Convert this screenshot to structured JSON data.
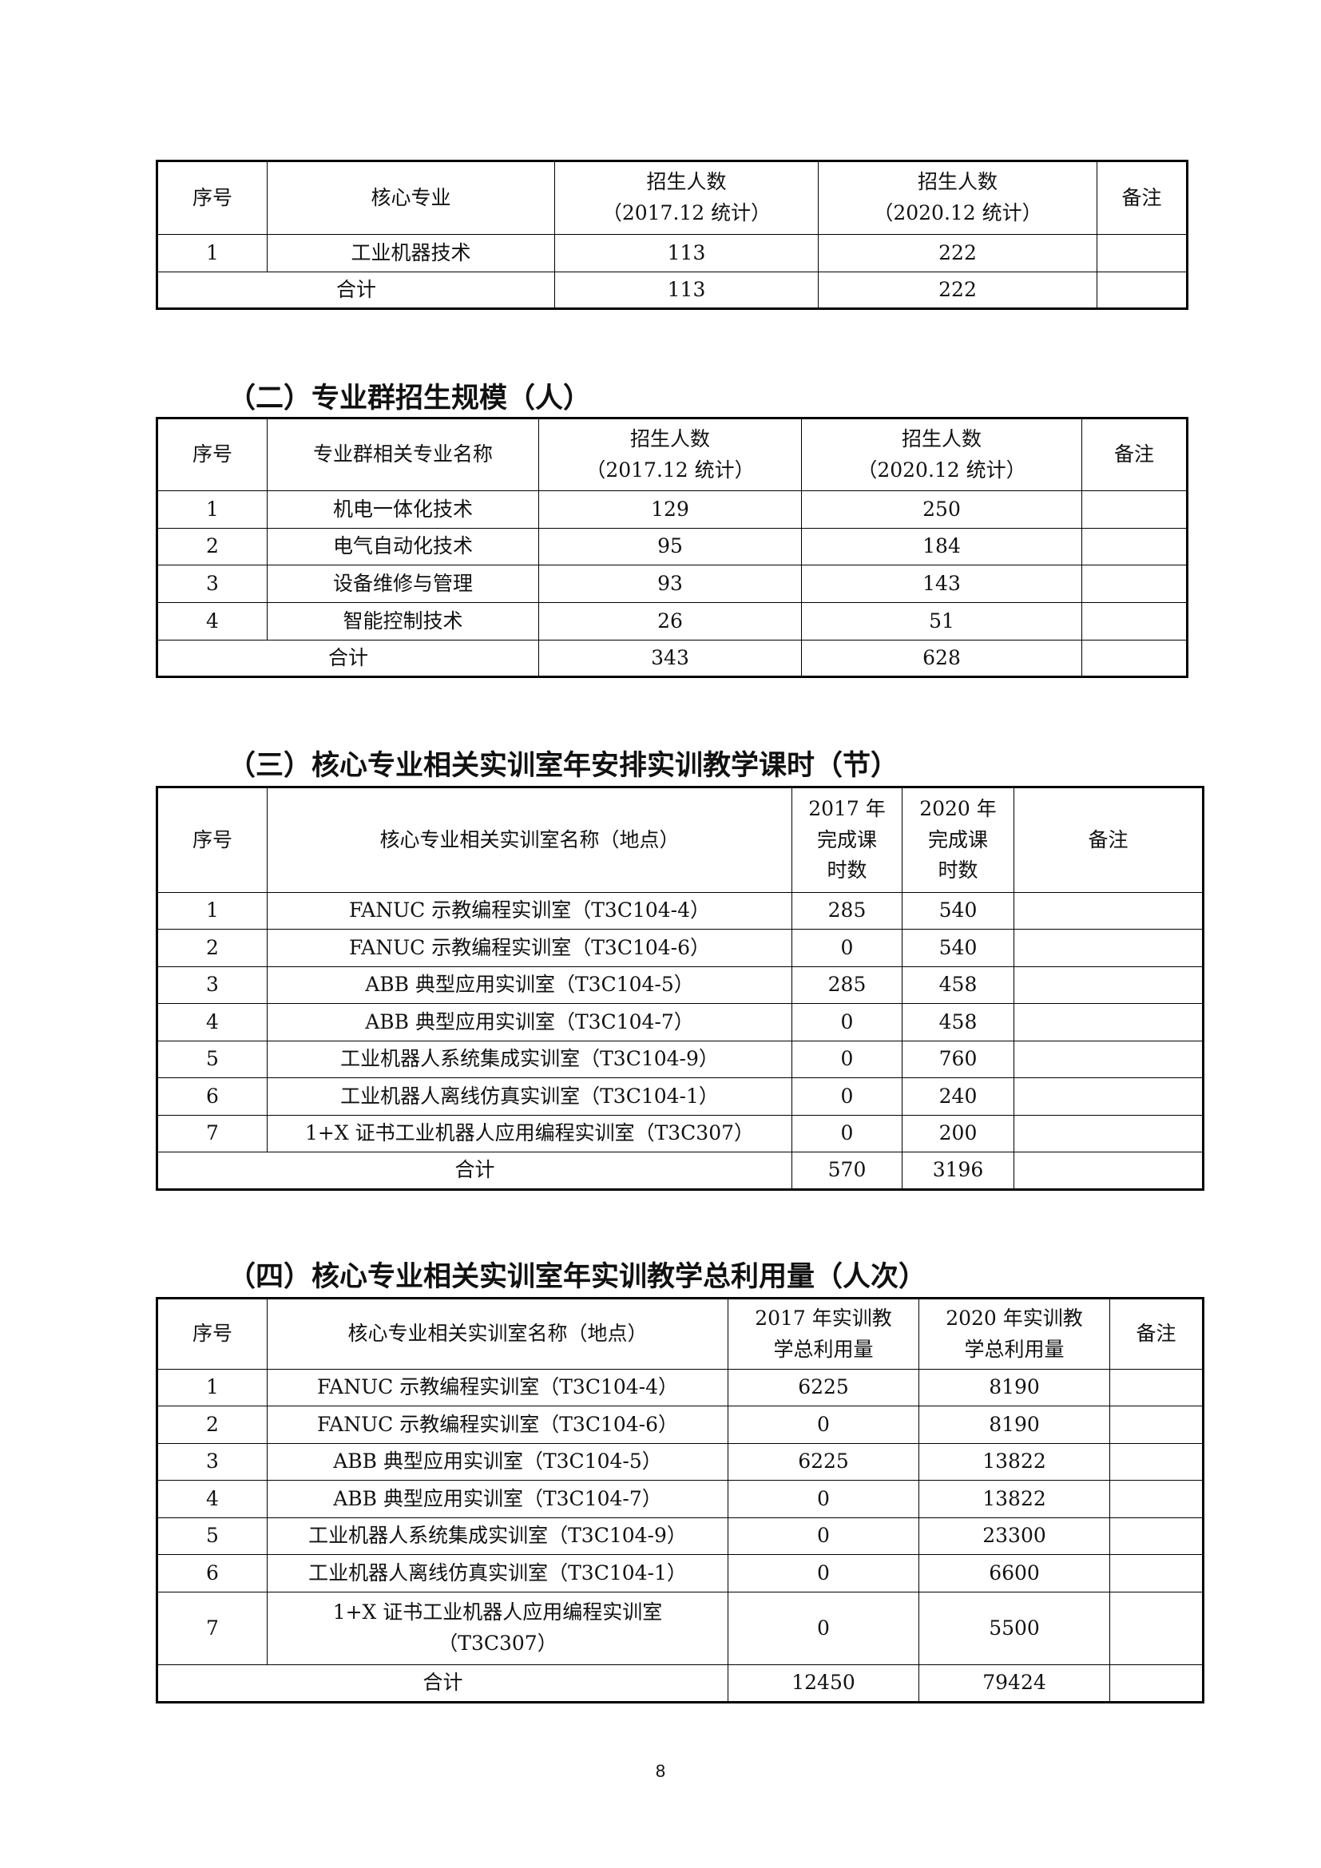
{
  "tables": [
    {
      "heading": "",
      "headers": [
        "序号",
        "核心专业",
        "招生人数\n（2017.12 统计）",
        "招生人数\n（2020.12 统计）",
        "备注"
      ],
      "rows": [
        [
          "1",
          "工业机器技术",
          "113",
          "222",
          ""
        ]
      ],
      "total": [
        "合计",
        "113",
        "222",
        ""
      ]
    },
    {
      "heading": "（二）专业群招生规模（人）",
      "headers": [
        "序号",
        "专业群相关专业名称",
        "招生人数\n（2017.12 统计）",
        "招生人数\n（2020.12 统计）",
        "备注"
      ],
      "rows": [
        [
          "1",
          "机电一体化技术",
          "129",
          "250",
          ""
        ],
        [
          "2",
          "电气自动化技术",
          "95",
          "184",
          ""
        ],
        [
          "3",
          "设备维修与管理",
          "93",
          "143",
          ""
        ],
        [
          "4",
          "智能控制技术",
          "26",
          "51",
          ""
        ]
      ],
      "total": [
        "合计",
        "343",
        "628",
        ""
      ]
    },
    {
      "heading": "（三）核心专业相关实训室年安排实训教学课时（节）",
      "headers": [
        "序号",
        "核心专业相关实训室名称（地点）",
        "2017 年\n完成课\n时数",
        "2020 年\n完成课\n时数",
        "备注"
      ],
      "rows": [
        [
          "1",
          "FANUC 示教编程实训室（T3C104-4）",
          "285",
          "540",
          ""
        ],
        [
          "2",
          "FANUC 示教编程实训室（T3C104-6）",
          "0",
          "540",
          ""
        ],
        [
          "3",
          "ABB 典型应用实训室（T3C104-5）",
          "285",
          "458",
          ""
        ],
        [
          "4",
          "ABB 典型应用实训室（T3C104-7）",
          "0",
          "458",
          ""
        ],
        [
          "5",
          "工业机器人系统集成实训室（T3C104-9）",
          "0",
          "760",
          ""
        ],
        [
          "6",
          "工业机器人离线仿真实训室（T3C104-1）",
          "0",
          "240",
          ""
        ],
        [
          "7",
          "1+X 证书工业机器人应用编程实训室（T3C307）",
          "0",
          "200",
          ""
        ]
      ],
      "total": [
        "合计",
        "570",
        "3196",
        ""
      ]
    },
    {
      "heading": "（四）核心专业相关实训室年实训教学总利用量（人次）",
      "headers": [
        "序号",
        "核心专业相关实训室名称（地点）",
        "2017 年实训教\n学总利用量",
        "2020 年实训教\n学总利用量",
        "备注"
      ],
      "rows": [
        [
          "1",
          "FANUC 示教编程实训室（T3C104-4）",
          "6225",
          "8190",
          ""
        ],
        [
          "2",
          "FANUC 示教编程实训室（T3C104-6）",
          "0",
          "8190",
          ""
        ],
        [
          "3",
          "ABB 典型应用实训室（T3C104-5）",
          "6225",
          "13822",
          ""
        ],
        [
          "4",
          "ABB 典型应用实训室（T3C104-7）",
          "0",
          "13822",
          ""
        ],
        [
          "5",
          "工业机器人系统集成实训室（T3C104-9）",
          "0",
          "23300",
          ""
        ],
        [
          "6",
          "工业机器人离线仿真实训室（T3C104-1）",
          "0",
          "6600",
          ""
        ],
        [
          "7",
          "1+X 证书工业机器人应用编程实训室\n（T3C307）",
          "0",
          "5500",
          ""
        ]
      ],
      "total": [
        "合计",
        "12450",
        "79424",
        ""
      ]
    }
  ],
  "page_number": "8"
}
